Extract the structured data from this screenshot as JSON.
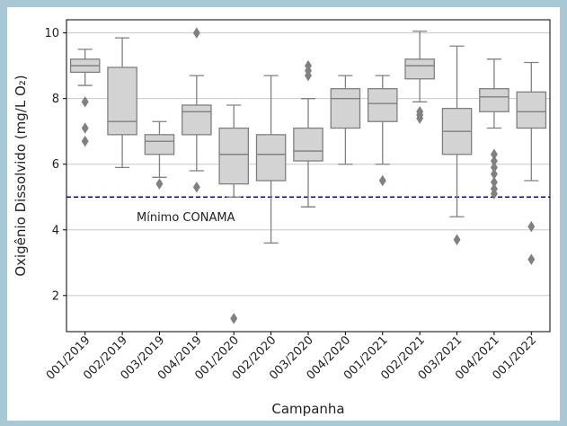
{
  "chart_data": {
    "type": "box",
    "xlabel": "Campanha",
    "ylabel": "Oxigênio Dissolvido (mg/L O₂)",
    "ylim": [
      0.9,
      10.4
    ],
    "yticks": [
      2,
      4,
      6,
      8,
      10
    ],
    "grid": "horizontal",
    "box_fill": "#d3d3d3",
    "box_stroke": "#808080",
    "reference_line": {
      "value": 5,
      "label": "Mínimo CONAMA",
      "color": "#0000cc",
      "style": "dashed"
    },
    "categories": [
      "001/2019",
      "002/2019",
      "003/2019",
      "004/2019",
      "001/2020",
      "002/2020",
      "003/2020",
      "004/2020",
      "001/2021",
      "002/2021",
      "003/2021",
      "004/2021",
      "001/2022"
    ],
    "boxes": [
      {
        "whislo": 8.4,
        "q1": 8.8,
        "med": 9.0,
        "q3": 9.2,
        "whishi": 9.5,
        "fliers": [
          7.9,
          7.1,
          6.7
        ]
      },
      {
        "whislo": 5.9,
        "q1": 6.9,
        "med": 7.3,
        "q3": 8.95,
        "whishi": 9.85,
        "fliers": []
      },
      {
        "whislo": 5.6,
        "q1": 6.3,
        "med": 6.7,
        "q3": 6.9,
        "whishi": 7.3,
        "fliers": [
          5.4
        ]
      },
      {
        "whislo": 5.8,
        "q1": 6.9,
        "med": 7.6,
        "q3": 7.8,
        "whishi": 8.7,
        "fliers": [
          10.0,
          5.3
        ]
      },
      {
        "whislo": 5.0,
        "q1": 5.4,
        "med": 6.3,
        "q3": 7.1,
        "whishi": 7.8,
        "fliers": [
          1.3
        ]
      },
      {
        "whislo": 3.6,
        "q1": 5.5,
        "med": 6.3,
        "q3": 6.9,
        "whishi": 8.7,
        "fliers": []
      },
      {
        "whislo": 4.7,
        "q1": 6.1,
        "med": 6.4,
        "q3": 7.1,
        "whishi": 8.0,
        "fliers": [
          8.7,
          8.85,
          9.0
        ]
      },
      {
        "whislo": 6.0,
        "q1": 7.1,
        "med": 8.0,
        "q3": 8.3,
        "whishi": 8.7,
        "fliers": []
      },
      {
        "whislo": 6.0,
        "q1": 7.3,
        "med": 7.85,
        "q3": 8.3,
        "whishi": 8.7,
        "fliers": [
          5.5
        ]
      },
      {
        "whislo": 7.9,
        "q1": 8.6,
        "med": 9.0,
        "q3": 9.2,
        "whishi": 10.05,
        "fliers": [
          7.6,
          7.5,
          7.4
        ]
      },
      {
        "whislo": 4.4,
        "q1": 6.3,
        "med": 7.0,
        "q3": 7.7,
        "whishi": 9.6,
        "fliers": [
          3.7
        ]
      },
      {
        "whislo": 7.1,
        "q1": 7.6,
        "med": 8.05,
        "q3": 8.3,
        "whishi": 9.2,
        "fliers": [
          6.3,
          6.1,
          5.9,
          5.7,
          5.45,
          5.25,
          5.1
        ]
      },
      {
        "whislo": 5.5,
        "q1": 7.1,
        "med": 7.6,
        "q3": 8.2,
        "whishi": 9.1,
        "fliers": [
          4.1,
          3.1
        ]
      }
    ]
  }
}
